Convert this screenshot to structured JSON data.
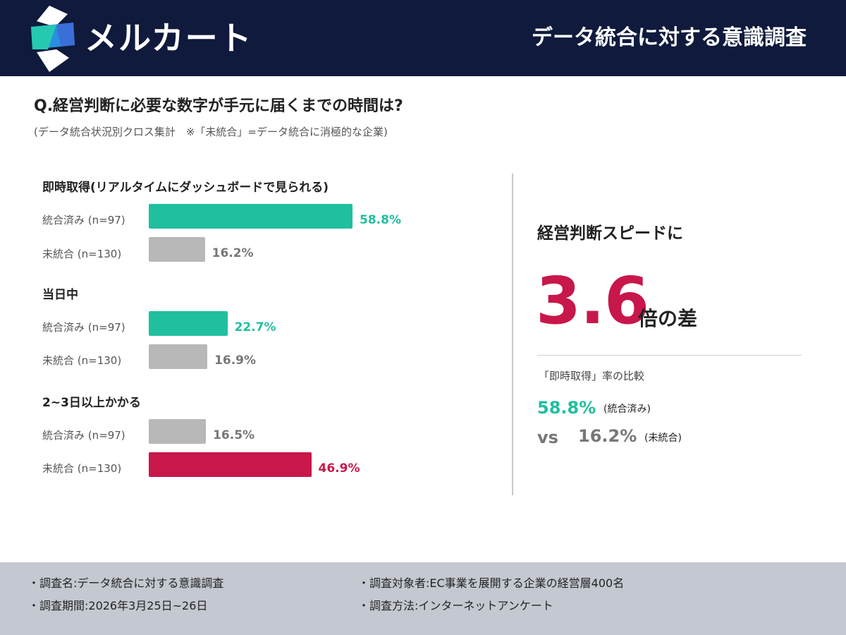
{
  "header": {
    "logo_text": "メルカート",
    "title": "データ統合に対する意識調査"
  },
  "question": "Q.経営判断に必要な数字が手元に届くまでの時間は?",
  "subtitle": "(データ統合状況別クロス集計　※「未統合」=データ統合に消極的な企業)",
  "colors": {
    "header_bg": "#0f1a3c",
    "integrated": "#20bfa0",
    "neutral": "#b8b8b8",
    "highlight": "#c8174a",
    "footer_bg": "#c4c8d0"
  },
  "chart_data": {
    "type": "bar",
    "orientation": "horizontal",
    "unit": "%",
    "xlim": [
      0,
      100
    ],
    "groups": [
      {
        "title": "即時取得(リアルタイムにダッシュボードで見られる)",
        "rows": [
          {
            "label": "統合済み (n=97)",
            "value": 58.8,
            "value_label": "58.8%",
            "color": "#20bfa0"
          },
          {
            "label": "未統合 (n=130)",
            "value": 16.2,
            "value_label": "16.2%",
            "color": "#b8b8b8"
          }
        ]
      },
      {
        "title": "当日中",
        "rows": [
          {
            "label": "統合済み (n=97)",
            "value": 22.7,
            "value_label": "22.7%",
            "color": "#20bfa0"
          },
          {
            "label": "未統合 (n=130)",
            "value": 16.9,
            "value_label": "16.9%",
            "color": "#b8b8b8"
          }
        ]
      },
      {
        "title": "2~3日以上かかる",
        "rows": [
          {
            "label": "統合済み (n=97)",
            "value": 16.5,
            "value_label": "16.5%",
            "color": "#b8b8b8"
          },
          {
            "label": "未統合 (n=130)",
            "value": 46.9,
            "value_label": "46.9%",
            "color": "#c8174a"
          }
        ]
      }
    ]
  },
  "highlight": {
    "title": "経営判断スピードに",
    "big_number": "3.6",
    "big_suffix": "倍の差",
    "caption": "「即時取得」率の比較",
    "value1": "58.8%",
    "tag1": "(統合済み)",
    "vs": "vs",
    "value2": "16.2%",
    "tag2": "(未統合)"
  },
  "footer": {
    "items": [
      "・調査名:データ統合に対する意識調査",
      "・調査対象者:EC事業を展開する企業の経営層400名",
      "・調査期間:2026年3月25日~26日",
      "・調査方法:インターネットアンケート"
    ]
  }
}
